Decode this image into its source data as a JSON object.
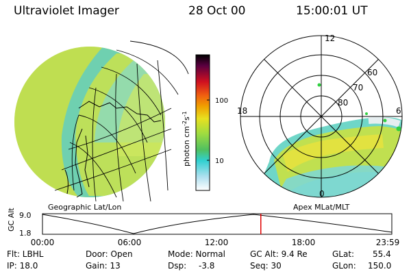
{
  "header": {
    "title": "Ultraviolet Imager",
    "date": "28 Oct 00",
    "time": "15:00:01 UT"
  },
  "colorbar": {
    "label": "photon cm",
    "label_sup1": "-2",
    "label_mid": "s",
    "label_sup2": "-1",
    "ticks": [
      "100",
      "10"
    ]
  },
  "geo_panel": {
    "caption": "Geographic Lat/Lon"
  },
  "apex_panel": {
    "caption": "Apex MLat/MLT",
    "mlt_labels": {
      "top": "12",
      "left": "18",
      "right": "6",
      "bottom": "0"
    },
    "lat_labels": [
      "60",
      "70",
      "80"
    ]
  },
  "timeline": {
    "ylabel": "GC Alt",
    "y_top": "9.0",
    "y_bottom": "1.8",
    "x_ticks": [
      "00:00",
      "06:00",
      "12:00",
      "18:00",
      "23:59"
    ],
    "current_fraction": 0.625
  },
  "info": {
    "flt": "Flt: LBHL",
    "ip": "IP: 18.0",
    "door": "Door: Open",
    "gain": "Gain: 13",
    "mode": "Mode: Normal",
    "dsp_label": "Dsp:",
    "dsp_value": "-3.8",
    "gcalt": "GC Alt: 9.4 Re",
    "seq": "Seq: 30",
    "glat_label": "GLat:",
    "glat_value": "55.4",
    "glon_label": "GLon:",
    "glon_value": "150.0"
  },
  "colors": {
    "marker": "#e00000",
    "aurora_green": "#b8dc3c",
    "aurora_yellow": "#e0e040",
    "aurora_cyan": "#3fd6d6"
  }
}
